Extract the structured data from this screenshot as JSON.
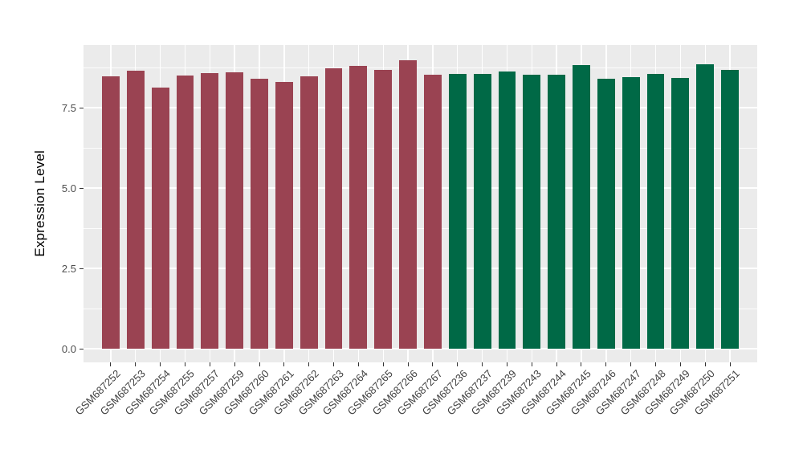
{
  "page": {
    "background": "#FFFFFF"
  },
  "chart_data": {
    "type": "bar",
    "title": "",
    "xlabel": "",
    "ylabel": "Expression Level",
    "ylim": [
      0,
      9.45
    ],
    "grid": "on",
    "legend": "none",
    "panel_background": "#EBEBEB",
    "gridline_color": "#FFFFFF",
    "axis_text_color": "#4D4D4D",
    "axis_title_color": "#000000",
    "tick_mark_color": "#333333",
    "yticks": [
      {
        "value": 0.0,
        "label": "0.0"
      },
      {
        "value": 2.5,
        "label": "2.5"
      },
      {
        "value": 5.0,
        "label": "5.0"
      },
      {
        "value": 7.5,
        "label": "7.5"
      }
    ],
    "minor_gridlines": [
      1.25,
      3.75,
      6.25,
      8.75
    ],
    "series": [
      {
        "name": "maroon-group",
        "color": "#9A4352",
        "categories": [
          "GSM687252",
          "GSM687253",
          "GSM687254",
          "GSM687255",
          "GSM687257",
          "GSM687259",
          "GSM687260",
          "GSM687261",
          "GSM687262",
          "GSM687263",
          "GSM687264",
          "GSM687265",
          "GSM687266",
          "GSM687267"
        ],
        "values": [
          8.48,
          8.66,
          8.12,
          8.5,
          8.58,
          8.6,
          8.41,
          8.31,
          8.48,
          8.72,
          8.79,
          8.68,
          8.98,
          8.52
        ]
      },
      {
        "name": "green-group",
        "color": "#006946",
        "categories": [
          "GSM687236",
          "GSM687237",
          "GSM687239",
          "GSM687243",
          "GSM687244",
          "GSM687245",
          "GSM687246",
          "GSM687247",
          "GSM687248",
          "GSM687249",
          "GSM687250",
          "GSM687251"
        ],
        "values": [
          8.55,
          8.55,
          8.63,
          8.53,
          8.53,
          8.83,
          8.41,
          8.46,
          8.56,
          8.42,
          8.85,
          8.68
        ]
      }
    ]
  }
}
